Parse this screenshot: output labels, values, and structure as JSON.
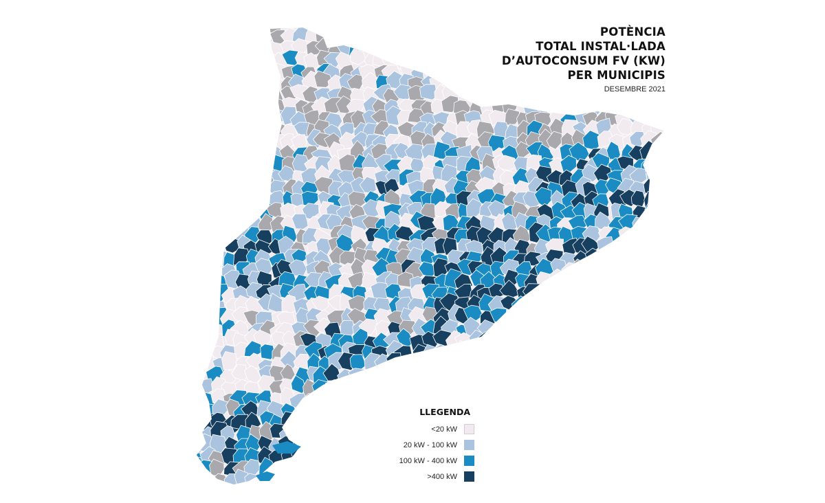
{
  "title_lines": [
    "POTÈNCIA",
    "TOTAL INSTAL·LADA",
    "D’AUTOCONSUM FV (KW)",
    "PER MUNICIPIS"
  ],
  "subtitle": "DESEMBRE 2021",
  "legend": {
    "title": "LLEGENDA",
    "items": [
      {
        "label": "<20 kW",
        "color": "#f1eaef"
      },
      {
        "label": "20 kW - 100 kW",
        "color": "#aac3df"
      },
      {
        "label": "100 kW - 400 kW",
        "color": "#1a8cc3"
      },
      {
        "label": ">400 kW",
        "color": "#173f5f"
      }
    ]
  },
  "no_data_color": "#a9a9ad"
}
